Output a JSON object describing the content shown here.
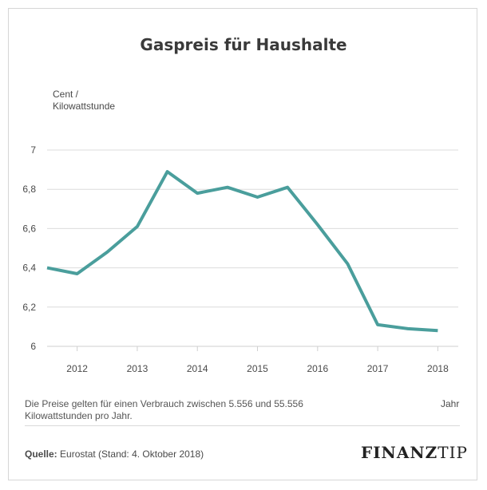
{
  "title": "Gaspreis für Haushalte",
  "chart_data": {
    "type": "line",
    "title": "Gaspreis für Haushalte",
    "ylabel_lines": [
      "Cent /",
      "Kilowattstunde"
    ],
    "xlabel": "Jahr",
    "ylim": [
      6,
      7
    ],
    "yticks": [
      "6",
      "6,2",
      "6,4",
      "6,6",
      "6,8",
      "7"
    ],
    "xticks": [
      "2012",
      "2013",
      "2014",
      "2015",
      "2016",
      "2017",
      "2018"
    ],
    "grid": true,
    "x": [
      2011.5,
      2012,
      2012.5,
      2013,
      2013.5,
      2014,
      2014.5,
      2015,
      2015.5,
      2016,
      2016.5,
      2017,
      2017.5,
      2018
    ],
    "series": [
      {
        "values": [
          6.4,
          6.37,
          6.48,
          6.61,
          6.89,
          6.78,
          6.81,
          6.76,
          6.81,
          6.62,
          6.42,
          6.11,
          6.09,
          6.08
        ]
      }
    ],
    "color": "#4a9e9c"
  },
  "note_lines": [
    "Die Preise gelten für einen Verbrauch zwischen 5.556 und 55.556",
    "Kilowattstunden pro Jahr."
  ],
  "source": {
    "label": "Quelle:",
    "text": "Eurostat (Stand: 4. Oktober 2018)"
  },
  "logo": {
    "part1": "FINANZ",
    "part2": "TIP"
  }
}
